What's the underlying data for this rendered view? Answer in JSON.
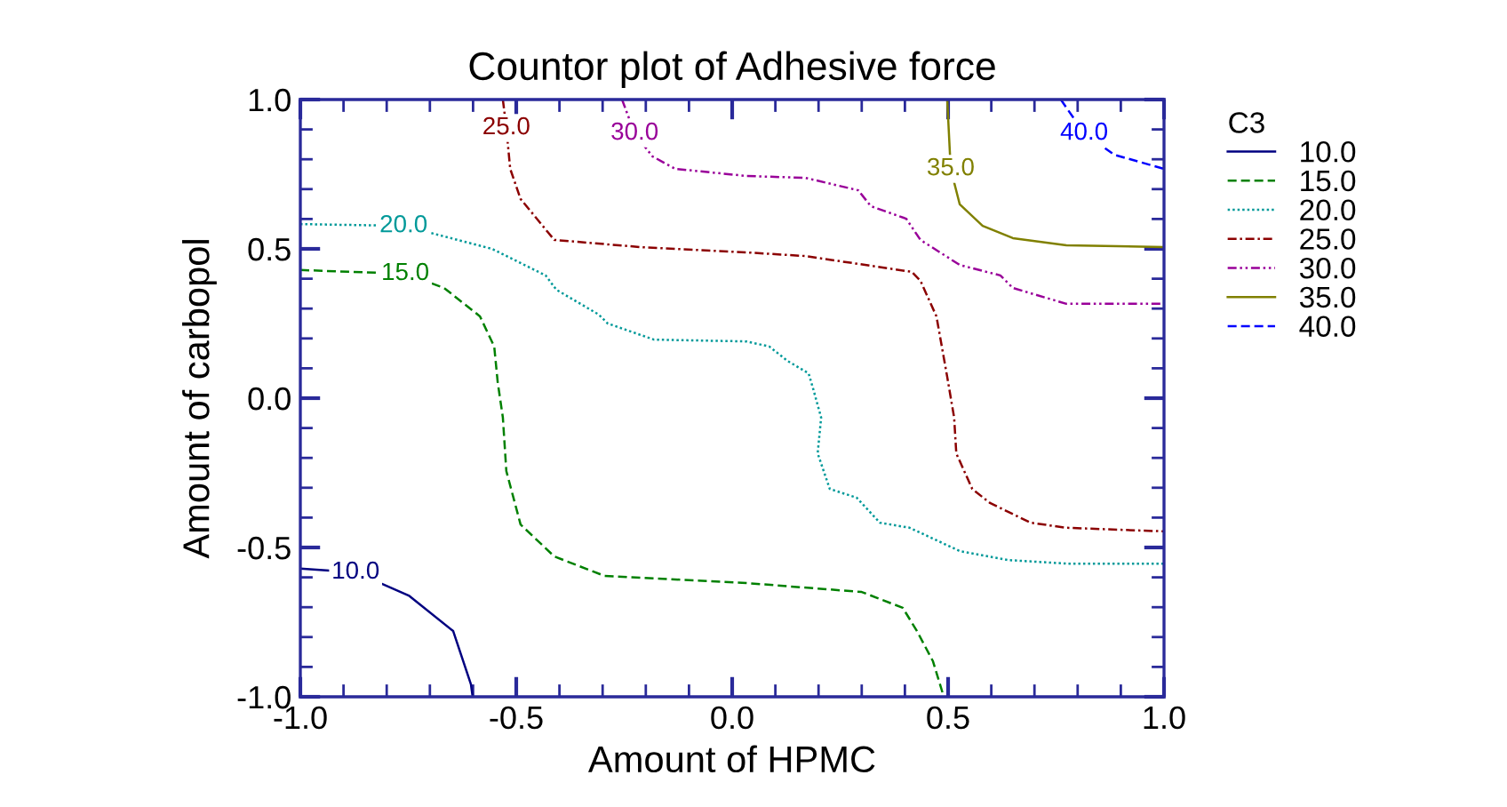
{
  "chart_data": {
    "type": "line",
    "title": "Countor plot of Adhesive force",
    "xlabel": "Amount of HPMC",
    "ylabel": "Amount of carbopol",
    "legend_title": "C3",
    "legend": "right",
    "grid": false,
    "xlim": [
      -1,
      1
    ],
    "ylim": [
      -1,
      1
    ],
    "xticks": [
      {
        "value": -1,
        "label": "-1.0"
      },
      {
        "value": -0.5,
        "label": "-0.5"
      },
      {
        "value": 0,
        "label": "0.0"
      },
      {
        "value": 0.5,
        "label": "0.5"
      },
      {
        "value": 1,
        "label": "1.0"
      }
    ],
    "yticks": [
      {
        "value": -1,
        "label": "-1.0"
      },
      {
        "value": -0.5,
        "label": "-0.5"
      },
      {
        "value": 0,
        "label": "0.0"
      },
      {
        "value": 0.5,
        "label": "0.5"
      },
      {
        "value": 1,
        "label": "1.0"
      }
    ],
    "series": [
      {
        "name": "10.0",
        "color": "#000080",
        "line_style": "solid",
        "x": [
          -1,
          -0.872,
          -0.749,
          -0.646,
          -0.605,
          -0.601
        ],
        "values": [
          -0.571,
          -0.583,
          -0.661,
          -0.78,
          -0.958,
          -1
        ]
      },
      {
        "name": "15.0",
        "color": "#008000",
        "line_style": "dashed",
        "x": [
          -1,
          -0.757,
          -0.667,
          -0.584,
          -0.551,
          -0.543,
          -0.531,
          -0.523,
          -0.49,
          -0.412,
          -0.296,
          0.033,
          0.3,
          0.395,
          0.428,
          0.465,
          0.49
        ],
        "values": [
          0.429,
          0.417,
          0.369,
          0.274,
          0.173,
          0.054,
          -0.065,
          -0.244,
          -0.423,
          -0.53,
          -0.595,
          -0.619,
          -0.649,
          -0.702,
          -0.78,
          -0.881,
          -1
        ]
      },
      {
        "name": "20.0",
        "color": "#009999",
        "line_style": "dotted",
        "x": [
          -1,
          -0.761,
          -0.556,
          -0.432,
          -0.407,
          -0.309,
          -0.288,
          -0.181,
          0.033,
          0.086,
          0.128,
          0.177,
          0.189,
          0.206,
          0.198,
          0.226,
          0.288,
          0.342,
          0.411,
          0.527,
          0.638,
          0.774,
          1
        ],
        "values": [
          0.583,
          0.577,
          0.5,
          0.411,
          0.363,
          0.28,
          0.25,
          0.196,
          0.19,
          0.173,
          0.125,
          0.083,
          0.024,
          -0.065,
          -0.185,
          -0.304,
          -0.333,
          -0.417,
          -0.434,
          -0.512,
          -0.542,
          -0.554,
          -0.554
        ]
      },
      {
        "name": "25.0",
        "color": "#8b0000",
        "line_style": "dashdot",
        "x": [
          -0.531,
          -0.523,
          -0.514,
          -0.49,
          -0.412,
          -0.214,
          0.033,
          0.169,
          0.416,
          0.436,
          0.473,
          0.498,
          0.514,
          0.519,
          0.556,
          0.597,
          0.691,
          0.774,
          1
        ],
        "values": [
          1,
          0.905,
          0.768,
          0.667,
          0.53,
          0.506,
          0.488,
          0.476,
          0.423,
          0.393,
          0.274,
          0.071,
          -0.065,
          -0.185,
          -0.304,
          -0.351,
          -0.417,
          -0.434,
          -0.446
        ]
      },
      {
        "name": "30.0",
        "color": "#990099",
        "line_style": "dashdotdot",
        "x": [
          -0.255,
          -0.226,
          -0.185,
          -0.132,
          0.033,
          0.169,
          0.292,
          0.321,
          0.403,
          0.436,
          0.527,
          0.621,
          0.65,
          0.774,
          1
        ],
        "values": [
          1,
          0.887,
          0.81,
          0.768,
          0.744,
          0.738,
          0.696,
          0.643,
          0.601,
          0.53,
          0.446,
          0.411,
          0.369,
          0.316,
          0.316
        ]
      },
      {
        "name": "35.0",
        "color": "#808000",
        "line_style": "solid",
        "x": [
          0.498,
          0.506,
          0.527,
          0.58,
          0.65,
          0.774,
          1
        ],
        "values": [
          1,
          0.768,
          0.649,
          0.577,
          0.536,
          0.512,
          0.506
        ]
      },
      {
        "name": "40.0",
        "color": "#0000ff",
        "line_style": "dashed",
        "x": [
          0.761,
          0.815,
          0.885,
          1
        ],
        "values": [
          1,
          0.887,
          0.815,
          0.768
        ]
      }
    ],
    "annotations": [
      "10.0",
      "15.0",
      "20.0",
      "25.0",
      "30.0",
      "35.0",
      "40.0"
    ]
  }
}
